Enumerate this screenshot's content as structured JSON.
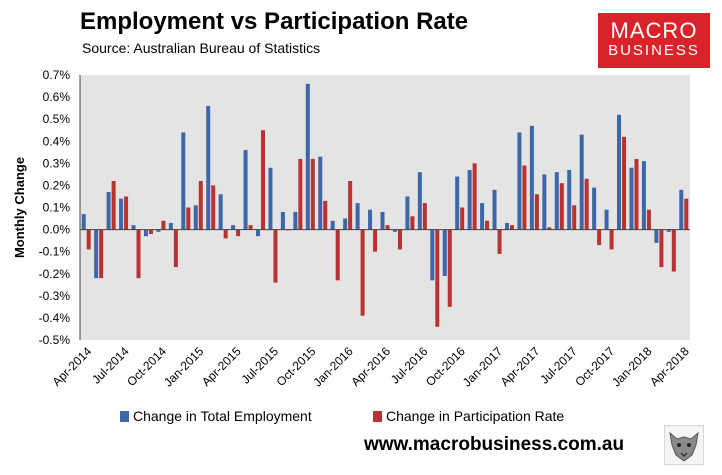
{
  "title": "Employment vs Participation Rate",
  "source": "Source: Australian Bureau of Statistics",
  "logo": {
    "line1": "MACRO",
    "line2": "BUSINESS",
    "color": "#d8232a"
  },
  "website": "www.macrobusiness.com.au",
  "colors": {
    "employment": "#3d67a8",
    "participation": "#b83230",
    "plot_bg": "#e4e4e4"
  },
  "chart_data": {
    "type": "bar",
    "title": "Employment vs Participation Rate",
    "xlabel": "",
    "ylabel": "Monthly Change",
    "ylim": [
      -0.5,
      0.7
    ],
    "yticks": [
      "0.7%",
      "0.6%",
      "0.5%",
      "0.4%",
      "0.3%",
      "0.2%",
      "0.1%",
      "0.0%",
      "-0.1%",
      "-0.2%",
      "-0.3%",
      "-0.4%",
      "-0.5%"
    ],
    "grid": false,
    "legend": "bottom",
    "categories": [
      "Apr-2014",
      "May-2014",
      "Jun-2014",
      "Jul-2014",
      "Aug-2014",
      "Sep-2014",
      "Oct-2014",
      "Nov-2014",
      "Dec-2014",
      "Jan-2015",
      "Feb-2015",
      "Mar-2015",
      "Apr-2015",
      "May-2015",
      "Jun-2015",
      "Jul-2015",
      "Aug-2015",
      "Sep-2015",
      "Oct-2015",
      "Nov-2015",
      "Dec-2015",
      "Jan-2016",
      "Feb-2016",
      "Mar-2016",
      "Apr-2016",
      "May-2016",
      "Jun-2016",
      "Jul-2016",
      "Aug-2016",
      "Sep-2016",
      "Oct-2016",
      "Nov-2016",
      "Dec-2016",
      "Jan-2017",
      "Feb-2017",
      "Mar-2017",
      "Apr-2017",
      "May-2017",
      "Jun-2017",
      "Jul-2017",
      "Aug-2017",
      "Sep-2017",
      "Oct-2017",
      "Nov-2017",
      "Dec-2017",
      "Jan-2018",
      "Feb-2018",
      "Mar-2018",
      "Apr-2018"
    ],
    "xtick_labels": [
      "Apr-2014",
      "Jul-2014",
      "Oct-2014",
      "Jan-2015",
      "Apr-2015",
      "Jul-2015",
      "Oct-2015",
      "Jan-2016",
      "Apr-2016",
      "Jul-2016",
      "Oct-2016",
      "Jan-2017",
      "Apr-2017",
      "Jul-2017",
      "Oct-2017",
      "Jan-2018",
      "Apr-2018"
    ],
    "series": [
      {
        "name": "Change in Total Employment",
        "values": [
          0.07,
          -0.22,
          0.17,
          0.14,
          0.02,
          -0.03,
          -0.01,
          0.03,
          0.44,
          0.11,
          0.56,
          0.16,
          0.02,
          0.36,
          -0.03,
          0.28,
          0.08,
          0.08,
          0.66,
          0.33,
          0.04,
          0.05,
          0.12,
          0.09,
          0.08,
          -0.01,
          0.15,
          0.26,
          -0.23,
          -0.21,
          0.24,
          0.27,
          0.12,
          0.18,
          0.03,
          0.44,
          0.47,
          0.25,
          0.26,
          0.27,
          0.43,
          0.19,
          0.09,
          0.52,
          0.28,
          0.31,
          -0.06,
          -0.01,
          0.18
        ]
      },
      {
        "name": "Change in Participation Rate",
        "values": [
          -0.09,
          -0.22,
          0.22,
          0.15,
          -0.22,
          -0.02,
          0.04,
          -0.17,
          0.1,
          0.22,
          0.2,
          -0.04,
          -0.03,
          0.02,
          0.45,
          -0.24,
          0.0,
          0.32,
          0.32,
          0.13,
          -0.23,
          0.22,
          -0.39,
          -0.1,
          0.02,
          -0.09,
          0.06,
          0.12,
          -0.44,
          -0.35,
          0.1,
          0.3,
          0.04,
          -0.11,
          0.02,
          0.29,
          0.16,
          0.01,
          0.21,
          0.11,
          0.23,
          -0.07,
          -0.09,
          0.42,
          0.32,
          0.09,
          -0.17,
          -0.19,
          0.14
        ]
      }
    ]
  }
}
